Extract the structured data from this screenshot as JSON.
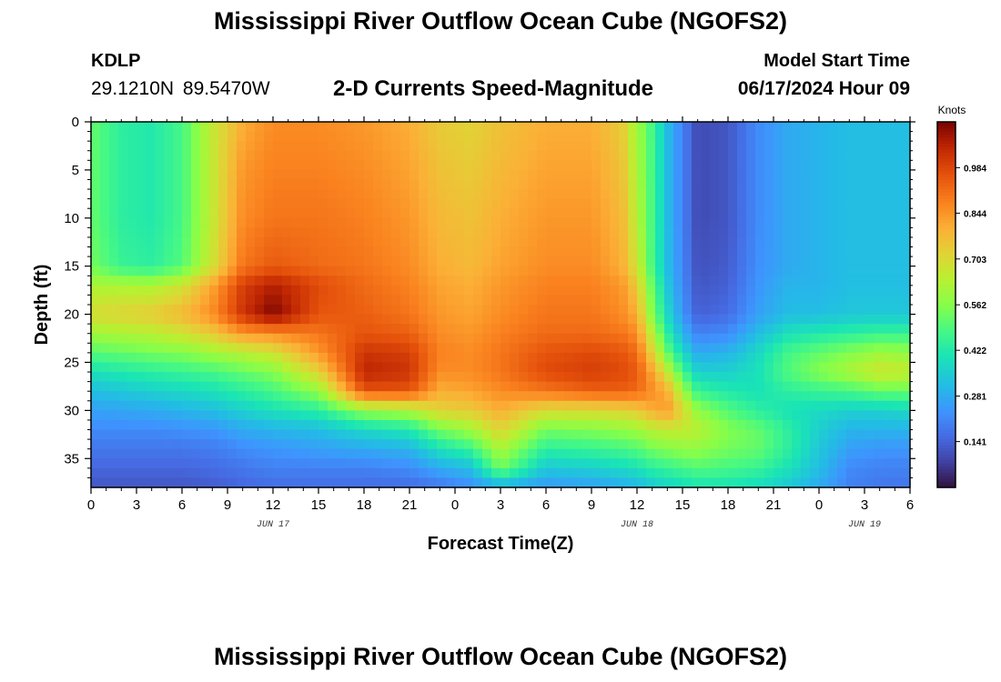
{
  "header": {
    "title": "Mississippi River Outflow Ocean Cube (NGOFS2)",
    "station_id": "KDLP",
    "station_coords": "29.1210N  89.5470W",
    "subtitle": "2-D Currents Speed-Magnitude",
    "model_start_label": "Model Start Time",
    "model_start_value": "06/17/2024 Hour 09"
  },
  "footer": {
    "title": "Mississippi River Outflow Ocean Cube (NGOFS2)"
  },
  "chart_data": {
    "type": "heatmap",
    "title": "2-D Currents Speed-Magnitude",
    "xlabel": "Forecast Time(Z)",
    "ylabel": "Depth (ft)",
    "x_range_hours": [
      0,
      54
    ],
    "x_tick_hours": [
      0,
      3,
      6,
      9,
      12,
      15,
      18,
      21,
      24,
      27,
      30,
      33,
      36,
      39,
      42,
      45,
      48,
      51,
      54
    ],
    "x_tick_labels": [
      "0",
      "3",
      "6",
      "9",
      "12",
      "15",
      "18",
      "21",
      "0",
      "3",
      "6",
      "9",
      "12",
      "15",
      "18",
      "21",
      "0",
      "3",
      "6"
    ],
    "day_labels": [
      {
        "hour": 12,
        "text": "JUN 17"
      },
      {
        "hour": 36,
        "text": "JUN 18"
      },
      {
        "hour": 51,
        "text": "JUN 19"
      }
    ],
    "y_range": [
      0,
      38
    ],
    "y_ticks": [
      0,
      5,
      10,
      15,
      20,
      25,
      30,
      35
    ],
    "y_tick_labels": [
      "0",
      "5",
      "10",
      "15",
      "20",
      "25",
      "30",
      "35"
    ],
    "y_inverted": true,
    "colorbar": {
      "unit": "Knots",
      "min": 0.0,
      "max": 1.125,
      "ticks": [
        0.141,
        0.281,
        0.422,
        0.562,
        0.703,
        0.844,
        0.984
      ],
      "tick_labels": [
        "0.141",
        "0.281",
        "0.422",
        "0.562",
        "0.703",
        "0.844",
        "0.984"
      ],
      "colormap": "turbo"
    },
    "depth_samples": [
      0,
      5,
      10,
      15,
      17,
      20,
      22,
      24,
      26,
      28,
      30,
      32,
      34,
      36,
      38
    ],
    "profiles": [
      {
        "hour": 0,
        "values": [
          0.52,
          0.52,
          0.52,
          0.54,
          0.62,
          0.7,
          0.6,
          0.5,
          0.4,
          0.32,
          0.26,
          0.22,
          0.18,
          0.15,
          0.12
        ]
      },
      {
        "hour": 2,
        "values": [
          0.44,
          0.44,
          0.44,
          0.46,
          0.62,
          0.72,
          0.62,
          0.52,
          0.42,
          0.34,
          0.27,
          0.22,
          0.18,
          0.15,
          0.12
        ]
      },
      {
        "hour": 4,
        "values": [
          0.42,
          0.42,
          0.42,
          0.44,
          0.62,
          0.74,
          0.64,
          0.54,
          0.44,
          0.36,
          0.28,
          0.22,
          0.18,
          0.15,
          0.12
        ]
      },
      {
        "hour": 6,
        "values": [
          0.48,
          0.48,
          0.48,
          0.5,
          0.68,
          0.78,
          0.68,
          0.56,
          0.46,
          0.38,
          0.3,
          0.23,
          0.18,
          0.15,
          0.12
        ]
      },
      {
        "hour": 8,
        "values": [
          0.66,
          0.66,
          0.66,
          0.68,
          0.82,
          0.86,
          0.74,
          0.6,
          0.48,
          0.4,
          0.32,
          0.24,
          0.19,
          0.16,
          0.13
        ]
      },
      {
        "hour": 10,
        "values": [
          0.8,
          0.84,
          0.86,
          0.9,
          1.0,
          1.02,
          0.84,
          0.64,
          0.52,
          0.44,
          0.36,
          0.28,
          0.22,
          0.18,
          0.15
        ]
      },
      {
        "hour": 12,
        "values": [
          0.86,
          0.88,
          0.9,
          0.95,
          1.06,
          1.12,
          0.86,
          0.68,
          0.56,
          0.48,
          0.4,
          0.3,
          0.24,
          0.2,
          0.16
        ]
      },
      {
        "hour": 15,
        "values": [
          0.86,
          0.88,
          0.9,
          0.92,
          0.98,
          0.96,
          0.9,
          0.84,
          0.72,
          0.58,
          0.44,
          0.32,
          0.26,
          0.2,
          0.16
        ]
      },
      {
        "hour": 18,
        "values": [
          0.84,
          0.86,
          0.88,
          0.9,
          0.92,
          0.94,
          0.96,
          1.02,
          1.05,
          0.96,
          0.58,
          0.38,
          0.28,
          0.2,
          0.16
        ]
      },
      {
        "hour": 21,
        "values": [
          0.8,
          0.82,
          0.84,
          0.86,
          0.88,
          0.9,
          0.94,
          1.0,
          1.02,
          0.96,
          0.62,
          0.42,
          0.3,
          0.22,
          0.16
        ]
      },
      {
        "hour": 23,
        "values": [
          0.74,
          0.76,
          0.78,
          0.8,
          0.82,
          0.84,
          0.86,
          0.88,
          0.86,
          0.8,
          0.72,
          0.54,
          0.4,
          0.28,
          0.18
        ]
      },
      {
        "hour": 25,
        "values": [
          0.72,
          0.74,
          0.76,
          0.78,
          0.8,
          0.82,
          0.84,
          0.86,
          0.86,
          0.82,
          0.74,
          0.6,
          0.46,
          0.32,
          0.22
        ]
      },
      {
        "hour": 27,
        "values": [
          0.76,
          0.78,
          0.8,
          0.82,
          0.84,
          0.86,
          0.88,
          0.9,
          0.9,
          0.86,
          0.8,
          0.72,
          0.62,
          0.54,
          0.28
        ]
      },
      {
        "hour": 30,
        "values": [
          0.8,
          0.82,
          0.84,
          0.86,
          0.88,
          0.9,
          0.92,
          0.96,
          0.98,
          0.9,
          0.7,
          0.54,
          0.44,
          0.34,
          0.24
        ]
      },
      {
        "hour": 33,
        "values": [
          0.8,
          0.82,
          0.84,
          0.86,
          0.88,
          0.9,
          0.92,
          0.98,
          1.0,
          0.94,
          0.7,
          0.56,
          0.46,
          0.36,
          0.26
        ]
      },
      {
        "hour": 35,
        "values": [
          0.74,
          0.76,
          0.78,
          0.8,
          0.84,
          0.86,
          0.9,
          0.96,
          0.98,
          0.94,
          0.72,
          0.58,
          0.48,
          0.38,
          0.28
        ]
      },
      {
        "hour": 36,
        "values": [
          0.6,
          0.62,
          0.64,
          0.68,
          0.74,
          0.8,
          0.86,
          0.92,
          0.95,
          0.92,
          0.74,
          0.6,
          0.5,
          0.4,
          0.3
        ]
      },
      {
        "hour": 37,
        "values": [
          0.48,
          0.48,
          0.48,
          0.48,
          0.52,
          0.56,
          0.64,
          0.72,
          0.82,
          0.86,
          0.8,
          0.64,
          0.54,
          0.44,
          0.34
        ]
      },
      {
        "hour": 38,
        "values": [
          0.32,
          0.32,
          0.32,
          0.32,
          0.34,
          0.38,
          0.44,
          0.52,
          0.66,
          0.8,
          0.84,
          0.66,
          0.56,
          0.46,
          0.36
        ]
      },
      {
        "hour": 39,
        "values": [
          0.2,
          0.2,
          0.2,
          0.21,
          0.22,
          0.24,
          0.3,
          0.38,
          0.48,
          0.6,
          0.72,
          0.66,
          0.58,
          0.48,
          0.38
        ]
      },
      {
        "hour": 40,
        "values": [
          0.1,
          0.1,
          0.1,
          0.11,
          0.12,
          0.14,
          0.2,
          0.28,
          0.36,
          0.46,
          0.58,
          0.64,
          0.58,
          0.5,
          0.4
        ]
      },
      {
        "hour": 42,
        "values": [
          0.12,
          0.12,
          0.12,
          0.13,
          0.14,
          0.16,
          0.22,
          0.3,
          0.36,
          0.42,
          0.5,
          0.56,
          0.54,
          0.48,
          0.4
        ]
      },
      {
        "hour": 44,
        "values": [
          0.22,
          0.22,
          0.22,
          0.23,
          0.24,
          0.26,
          0.32,
          0.38,
          0.4,
          0.4,
          0.44,
          0.52,
          0.52,
          0.46,
          0.38
        ]
      },
      {
        "hour": 46,
        "values": [
          0.28,
          0.28,
          0.28,
          0.28,
          0.3,
          0.32,
          0.4,
          0.48,
          0.5,
          0.44,
          0.4,
          0.44,
          0.44,
          0.4,
          0.34
        ]
      },
      {
        "hour": 48,
        "values": [
          0.3,
          0.3,
          0.3,
          0.3,
          0.3,
          0.32,
          0.42,
          0.52,
          0.56,
          0.46,
          0.38,
          0.36,
          0.34,
          0.32,
          0.28
        ]
      },
      {
        "hour": 50,
        "values": [
          0.32,
          0.32,
          0.32,
          0.32,
          0.32,
          0.34,
          0.44,
          0.56,
          0.62,
          0.48,
          0.36,
          0.3,
          0.26,
          0.22,
          0.2
        ]
      },
      {
        "hour": 52,
        "values": [
          0.32,
          0.32,
          0.32,
          0.32,
          0.32,
          0.34,
          0.46,
          0.6,
          0.68,
          0.52,
          0.36,
          0.3,
          0.24,
          0.2,
          0.18
        ]
      },
      {
        "hour": 54,
        "values": [
          0.32,
          0.32,
          0.32,
          0.32,
          0.32,
          0.34,
          0.46,
          0.58,
          0.66,
          0.52,
          0.38,
          0.3,
          0.24,
          0.2,
          0.18
        ]
      }
    ]
  }
}
